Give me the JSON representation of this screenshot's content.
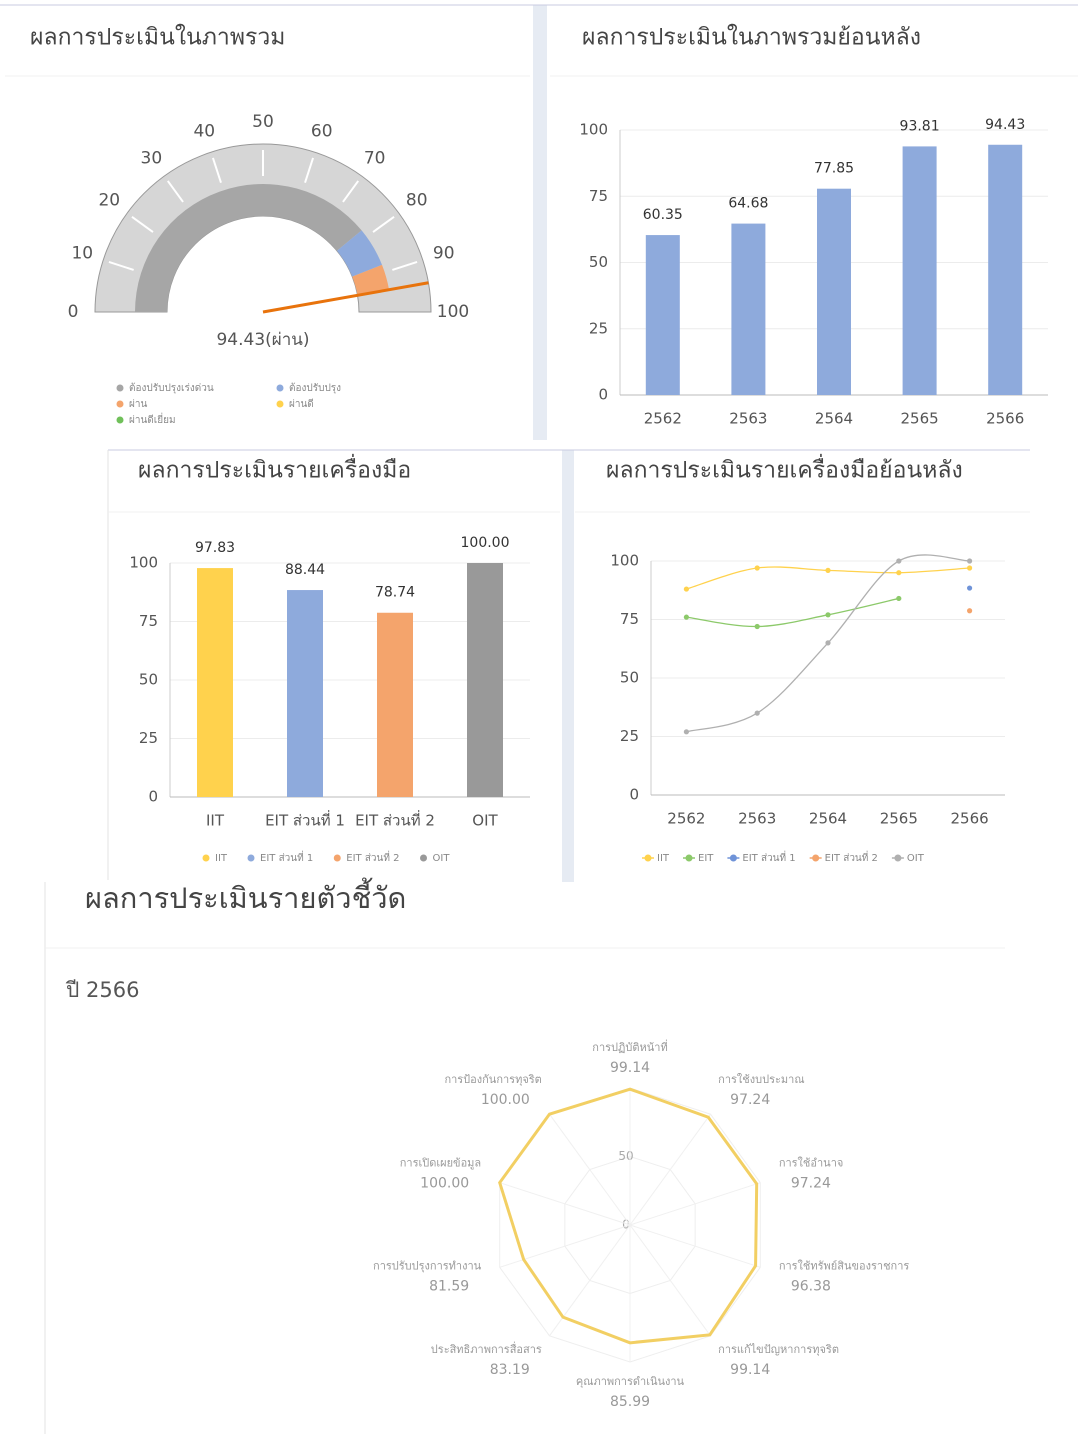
{
  "chart_data": [
    {
      "type": "gauge",
      "title": "ผลการประเมินในภาพรวม",
      "value": 94.43,
      "value_label": "94.43(ผ่าน)",
      "lim": [
        0,
        100
      ],
      "ticks": [
        0,
        10,
        20,
        30,
        40,
        50,
        60,
        70,
        80,
        90,
        100
      ],
      "bands": [
        {
          "from": 0,
          "to": 78,
          "color": "#a6a6a6"
        },
        {
          "from": 78,
          "to": 88,
          "color": "#8eaadc"
        },
        {
          "from": 88,
          "to": 94.43,
          "color": "#f4a46c"
        }
      ],
      "needle_color": "#e8730c",
      "legend": [
        {
          "name": "ต้องปรับปรุงเร่งด่วน",
          "color": "#a6a6a6"
        },
        {
          "name": "ต้องปรับปรุง",
          "color": "#8eaadc"
        },
        {
          "name": "ผ่าน",
          "color": "#f4a46c"
        },
        {
          "name": "ผ่านดี",
          "color": "#ffd24d"
        },
        {
          "name": "ผ่านดีเยี่ยม",
          "color": "#70c05a"
        }
      ]
    },
    {
      "type": "bar",
      "title": "ผลการประเมินในภาพรวมย้อนหลัง",
      "categories": [
        "2562",
        "2563",
        "2564",
        "2565",
        "2566"
      ],
      "values": [
        60.35,
        64.68,
        77.85,
        93.81,
        94.43
      ],
      "color": "#8eaadc",
      "ylim": [
        0,
        100
      ],
      "yticks": [
        0,
        25,
        50,
        75,
        100
      ],
      "grid": true
    },
    {
      "type": "bar",
      "title": "ผลการประเมินรายเครื่องมือ",
      "categories": [
        "IIT",
        "EIT ส่วนที่ 1",
        "EIT ส่วนที่ 2",
        "OIT"
      ],
      "values": [
        97.83,
        88.44,
        78.74,
        100
      ],
      "value_labels": [
        "97.83",
        "88.44",
        "78.74",
        "100.00"
      ],
      "colors": [
        "#ffd24d",
        "#8eaadc",
        "#f4a46c",
        "#999999"
      ],
      "ylim": [
        0,
        100
      ],
      "yticks": [
        0,
        25,
        50,
        75,
        100
      ],
      "grid": true,
      "legend": true
    },
    {
      "type": "line",
      "title": "ผลการประเมินรายเครื่องมือย้อนหลัง",
      "categories": [
        "2562",
        "2563",
        "2564",
        "2565",
        "2566"
      ],
      "series": [
        {
          "name": "IIT",
          "color": "#ffd24d",
          "values": [
            88,
            97,
            96,
            95,
            97
          ]
        },
        {
          "name": "EIT",
          "color": "#8cc96a",
          "values": [
            76,
            72,
            77,
            84,
            null
          ]
        },
        {
          "name": "EIT ส่วนที่ 1",
          "color": "#6f93d8",
          "values": [
            null,
            null,
            null,
            null,
            88.44
          ]
        },
        {
          "name": "EIT ส่วนที่ 2",
          "color": "#f4a46c",
          "values": [
            null,
            null,
            null,
            null,
            78.74
          ]
        },
        {
          "name": "OIT",
          "color": "#b0b0b0",
          "values": [
            27,
            35,
            65,
            100,
            100
          ]
        }
      ],
      "ylim": [
        0,
        100
      ],
      "yticks": [
        0,
        25,
        50,
        75,
        100
      ],
      "grid": true,
      "legend": true
    },
    {
      "type": "radar",
      "title": "ผลการประเมินรายตัวชี้วัด",
      "subtitle": "ปี 2566",
      "categories": [
        "การปฏิบัติหน้าที่",
        "การใช้งบประมาณ",
        "การใช้อำนาจ",
        "การใช้ทรัพย์สินของราชการ",
        "การแก้ไขปัญหาการทุจริต",
        "คุณภาพการดำเนินงาน",
        "ประสิทธิภาพการสื่อสาร",
        "การปรับปรุงการทำงาน",
        "การเปิดเผยข้อมูล",
        "การป้องกันการทุจริต"
      ],
      "values": [
        99.14,
        97.24,
        97.24,
        96.38,
        99.14,
        85.99,
        83.19,
        81.59,
        100,
        100
      ],
      "value_labels": [
        "99.14",
        "97.24",
        "97.24",
        "96.38",
        "99.14",
        "85.99",
        "83.19",
        "81.59",
        "100.00",
        "100.00"
      ],
      "rlim": [
        0,
        100
      ],
      "rticks": [
        0,
        50
      ],
      "color": "#f2cf63"
    }
  ]
}
